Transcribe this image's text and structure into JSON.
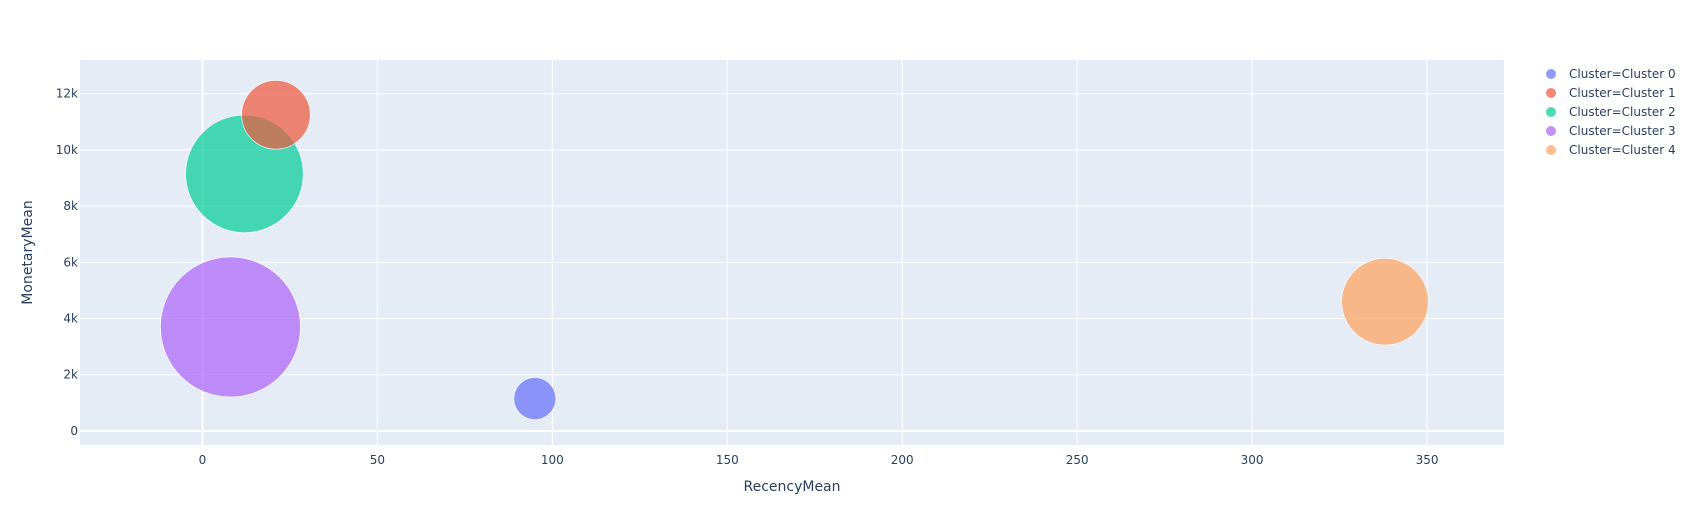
{
  "chart_data": {
    "type": "scatter",
    "title": "",
    "xlabel": "RecencyMean",
    "ylabel": "MonetaryMean",
    "xlim": [
      -35,
      372
    ],
    "ylim": [
      -500,
      13200
    ],
    "x_ticks": [
      0,
      50,
      100,
      150,
      200,
      250,
      300,
      350
    ],
    "x_tick_labels": [
      "0",
      "50",
      "100",
      "150",
      "200",
      "250",
      "300",
      "350"
    ],
    "y_ticks": [
      0,
      2000,
      4000,
      6000,
      8000,
      10000,
      12000
    ],
    "y_tick_labels": [
      "0",
      "2k",
      "4k",
      "6k",
      "8k",
      "10k",
      "12k"
    ],
    "grid": true,
    "legend_position": "right",
    "series": [
      {
        "name": "Cluster=Cluster 0",
        "color": "#636efa",
        "points": [
          {
            "x": 95,
            "y": 1150,
            "size_rel": 0.3
          }
        ]
      },
      {
        "name": "Cluster=Cluster 1",
        "color": "#ef553b",
        "points": [
          {
            "x": 21,
            "y": 11250,
            "size_rel": 0.49
          }
        ]
      },
      {
        "name": "Cluster=Cluster 2",
        "color": "#00cc96",
        "points": [
          {
            "x": 12,
            "y": 9150,
            "size_rel": 0.84
          }
        ]
      },
      {
        "name": "Cluster=Cluster 3",
        "color": "#ab63fa",
        "points": [
          {
            "x": 8,
            "y": 3700,
            "size_rel": 1.0
          }
        ]
      },
      {
        "name": "Cluster=Cluster 4",
        "color": "#ffa15a",
        "points": [
          {
            "x": 338,
            "y": 4600,
            "size_rel": 0.62
          }
        ]
      }
    ]
  }
}
